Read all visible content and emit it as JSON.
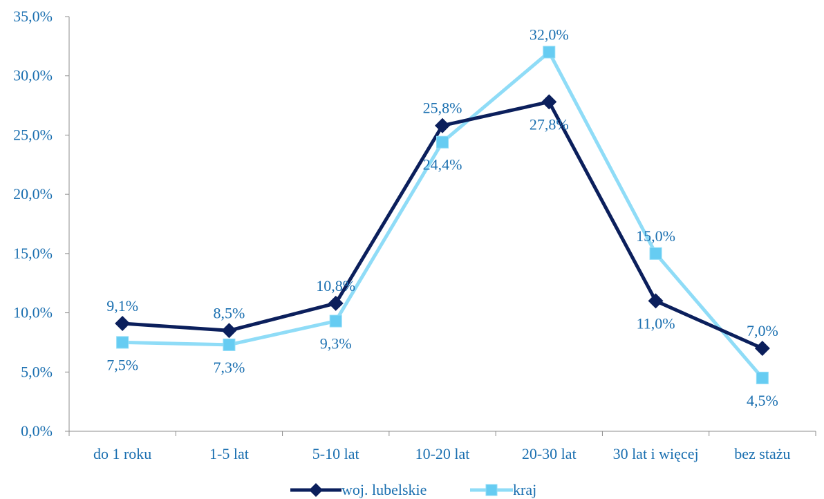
{
  "chart_data": {
    "type": "line",
    "title": "",
    "xlabel": "",
    "ylabel": "",
    "ylim": [
      0,
      35
    ],
    "y_ticks": [
      "0,0%",
      "5,0%",
      "10,0%",
      "15,0%",
      "20,0%",
      "25,0%",
      "30,0%",
      "35,0%"
    ],
    "y_tick_values": [
      0,
      5,
      10,
      15,
      20,
      25,
      30,
      35
    ],
    "categories": [
      "do 1 roku",
      "1-5 lat",
      "5-10 lat",
      "10-20 lat",
      "20-30 lat",
      "30 lat i więcej",
      "bez stażu"
    ],
    "grid": false,
    "legend_position": "bottom",
    "series": [
      {
        "name": "woj. lubelskie",
        "values": [
          9.1,
          8.5,
          10.8,
          25.8,
          27.8,
          11.0,
          7.0
        ],
        "labels": [
          "9,1%",
          "8,5%",
          "10,8%",
          "25,8%",
          "27,8%",
          "11,0%",
          "7,0%"
        ],
        "label_placement": [
          "above",
          "above",
          "above",
          "above",
          "below",
          "below",
          "above"
        ],
        "color": "#0b1f5c",
        "marker": "diamond"
      },
      {
        "name": "kraj",
        "values": [
          7.5,
          7.3,
          9.3,
          24.4,
          32.0,
          15.0,
          4.5
        ],
        "labels": [
          "7,5%",
          "7,3%",
          "9,3%",
          "24,4%",
          "32,0%",
          "15,0%",
          "4,5%"
        ],
        "label_placement": [
          "below",
          "below",
          "below",
          "below",
          "above",
          "above",
          "below"
        ],
        "color": "#8fdcf7",
        "marker_color": "#66ccf2",
        "marker": "square"
      }
    ]
  }
}
